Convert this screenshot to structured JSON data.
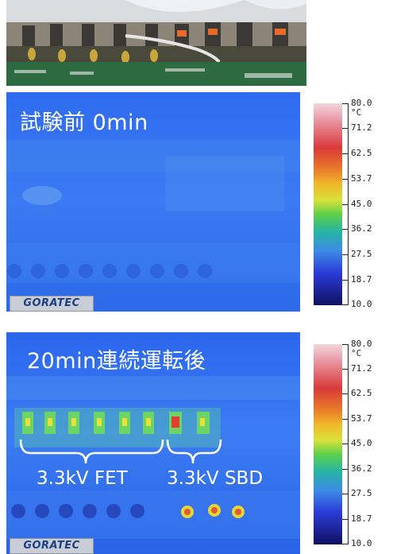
{
  "panel_before": {
    "title": "試験前 0min",
    "brand": "GORATEC"
  },
  "panel_after": {
    "title": "20min連続運転後",
    "label_fet": "3.3kV FET",
    "label_sbd": "3.3kV SBD",
    "brand": "GORATEC"
  },
  "scale": {
    "unit": "°C",
    "labels": [
      "80.0",
      "71.2",
      "62.5",
      "53.7",
      "45.0",
      "36.2",
      "27.5",
      "18.7",
      "10.0"
    ]
  }
}
